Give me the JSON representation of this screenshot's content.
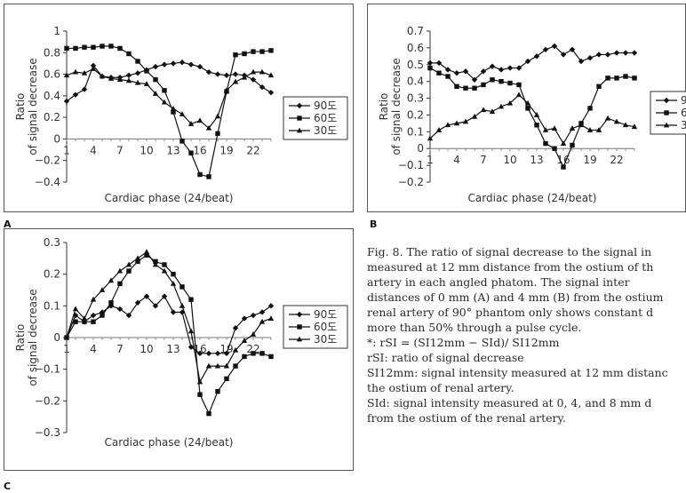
{
  "chart_data": [
    {
      "type": "line",
      "panel": "A",
      "ylabel": "Ratio\nof signal decrease",
      "xlabel": "Cardiac phase (24/beat)",
      "ylim": [
        -0.4,
        1.0
      ],
      "yticks": [
        "1",
        "0.8",
        "0.6",
        "0.4",
        "0.2",
        "0",
        "−0.2",
        "−0.4"
      ],
      "ytick_values": [
        1.0,
        0.8,
        0.6,
        0.4,
        0.2,
        0,
        -0.2,
        -0.4
      ],
      "xticks": [
        "1",
        "4",
        "7",
        "10",
        "13",
        "16",
        "19",
        "22"
      ],
      "xtick_values": [
        1,
        4,
        7,
        10,
        13,
        16,
        19,
        22
      ],
      "x": [
        1,
        2,
        3,
        4,
        5,
        6,
        7,
        8,
        9,
        10,
        11,
        12,
        13,
        14,
        15,
        16,
        17,
        18,
        19,
        20,
        21,
        22,
        23,
        24
      ],
      "series": [
        {
          "name": "90도",
          "marker": "diamond",
          "values": [
            0.35,
            0.41,
            0.46,
            0.68,
            0.58,
            0.57,
            0.57,
            0.59,
            0.61,
            0.64,
            0.67,
            0.69,
            0.7,
            0.71,
            0.69,
            0.67,
            0.62,
            0.6,
            0.59,
            0.6,
            0.59,
            0.55,
            0.48,
            0.43
          ]
        },
        {
          "name": "60도",
          "marker": "square",
          "values": [
            0.84,
            0.84,
            0.85,
            0.85,
            0.86,
            0.86,
            0.84,
            0.79,
            0.72,
            0.63,
            0.55,
            0.45,
            0.25,
            -0.02,
            -0.13,
            -0.33,
            -0.35,
            0.05,
            0.44,
            0.78,
            0.79,
            0.81,
            0.81,
            0.82
          ]
        },
        {
          "name": "30도",
          "marker": "triangle",
          "values": [
            0.59,
            0.62,
            0.61,
            0.65,
            0.58,
            0.56,
            0.55,
            0.54,
            0.52,
            0.51,
            0.42,
            0.34,
            0.28,
            0.23,
            0.14,
            0.17,
            0.1,
            0.21,
            0.45,
            0.53,
            0.57,
            0.62,
            0.62,
            0.59
          ]
        }
      ],
      "legend": "right"
    },
    {
      "type": "line",
      "panel": "B",
      "ylabel": "Ratio\nof signal decrease",
      "xlabel": "Cardiac phase (24/beat)",
      "ylim": [
        -0.2,
        0.7
      ],
      "yticks": [
        "0.7",
        "0.6",
        "0.5",
        "0.4",
        "0.3",
        "0.2",
        "0.1",
        "0",
        "−0.1",
        "−0.2"
      ],
      "ytick_values": [
        0.7,
        0.6,
        0.5,
        0.4,
        0.3,
        0.2,
        0.1,
        0,
        -0.1,
        -0.2
      ],
      "xticks": [
        "1",
        "4",
        "7",
        "10",
        "13",
        "16",
        "19",
        "22"
      ],
      "xtick_values": [
        1,
        4,
        7,
        10,
        13,
        16,
        19,
        22
      ],
      "x": [
        1,
        2,
        3,
        4,
        5,
        6,
        7,
        8,
        9,
        10,
        11,
        12,
        13,
        14,
        15,
        16,
        17,
        18,
        19,
        20,
        21,
        22,
        23,
        24
      ],
      "series": [
        {
          "name": "90도",
          "marker": "diamond",
          "values": [
            0.51,
            0.51,
            0.47,
            0.45,
            0.46,
            0.41,
            0.46,
            0.49,
            0.47,
            0.48,
            0.48,
            0.52,
            0.55,
            0.59,
            0.61,
            0.56,
            0.59,
            0.52,
            0.54,
            0.56,
            0.56,
            0.57,
            0.57,
            0.57
          ]
        },
        {
          "name": "60도",
          "marker": "square",
          "values": [
            0.48,
            0.45,
            0.43,
            0.37,
            0.36,
            0.36,
            0.38,
            0.41,
            0.4,
            0.39,
            0.38,
            0.24,
            0.14,
            0.03,
            0.0,
            -0.11,
            0.02,
            0.15,
            0.24,
            0.37,
            0.42,
            0.42,
            0.43,
            0.42
          ]
        },
        {
          "name": "30도",
          "marker": "triangle",
          "values": [
            0.06,
            0.11,
            0.14,
            0.15,
            0.16,
            0.19,
            0.23,
            0.22,
            0.25,
            0.27,
            0.32,
            0.27,
            0.2,
            0.11,
            0.12,
            0.03,
            0.12,
            0.14,
            0.11,
            0.11,
            0.18,
            0.16,
            0.14,
            0.13
          ]
        }
      ],
      "legend": "right",
      "legend_labels": [
        "9",
        "6",
        "3"
      ]
    },
    {
      "type": "line",
      "panel": "C",
      "ylabel": "Ratio\nof signal decrease",
      "xlabel": "Cardiac phase (24/beat)",
      "ylim": [
        -0.3,
        0.3
      ],
      "yticks": [
        "0.3",
        "0.2",
        "0.1",
        "0",
        "−0.1",
        "−0.2",
        "−0.3"
      ],
      "ytick_values": [
        0.3,
        0.2,
        0.1,
        0,
        -0.1,
        -0.2,
        -0.3
      ],
      "xticks": [
        "1",
        "4",
        "7",
        "10",
        "13",
        "16",
        "19",
        "22"
      ],
      "xtick_values": [
        1,
        4,
        7,
        10,
        13,
        16,
        19,
        22
      ],
      "x": [
        1,
        2,
        3,
        4,
        5,
        6,
        7,
        8,
        9,
        10,
        11,
        12,
        13,
        14,
        15,
        16,
        17,
        18,
        19,
        20,
        21,
        22,
        23,
        24
      ],
      "series": [
        {
          "name": "90도",
          "marker": "diamond",
          "values": [
            0.0,
            0.07,
            0.05,
            0.07,
            0.08,
            0.1,
            0.09,
            0.07,
            0.11,
            0.13,
            0.1,
            0.13,
            0.08,
            0.08,
            -0.03,
            -0.05,
            -0.05,
            -0.05,
            -0.05,
            0.03,
            0.06,
            0.07,
            0.08,
            0.1
          ]
        },
        {
          "name": "60도",
          "marker": "square",
          "values": [
            0.0,
            0.05,
            0.05,
            0.05,
            0.07,
            0.11,
            0.17,
            0.21,
            0.24,
            0.26,
            0.24,
            0.23,
            0.2,
            0.16,
            0.12,
            -0.18,
            -0.24,
            -0.17,
            -0.13,
            -0.09,
            -0.06,
            -0.05,
            -0.05,
            -0.06
          ]
        },
        {
          "name": "30도",
          "marker": "triangle",
          "values": [
            0.0,
            0.09,
            0.06,
            0.12,
            0.15,
            0.18,
            0.21,
            0.23,
            0.25,
            0.27,
            0.23,
            0.21,
            0.17,
            0.1,
            0.02,
            -0.14,
            -0.09,
            -0.09,
            -0.09,
            -0.04,
            -0.01,
            0.01,
            0.05,
            0.06
          ]
        }
      ],
      "legend": "right"
    }
  ],
  "panel_letters": {
    "a": "A",
    "b": "B",
    "c": "C"
  },
  "caption": {
    "lines": [
      "Fig. 8. The ratio of signal decrease to the signal in",
      "measured at 12 mm distance from the ostium of th",
      "artery in each angled phatom. The signal inter",
      "distances of 0 mm (A) and 4 mm (B) from the ostium",
      "renal artery of 90° phantom only shows constant d",
      "more than 50% through a pulse cycle.",
      "*: rSI = (SI12mm − SId)/ SI12mm",
      "rSI: ratio of signal decrease",
      "SI12mm: signal intensity measured at 12 mm distanc",
      "the ostium of renal artery.",
      "SId: signal intensity measured at 0, 4, and 8 mm d",
      "from the ostium of the renal artery."
    ]
  }
}
